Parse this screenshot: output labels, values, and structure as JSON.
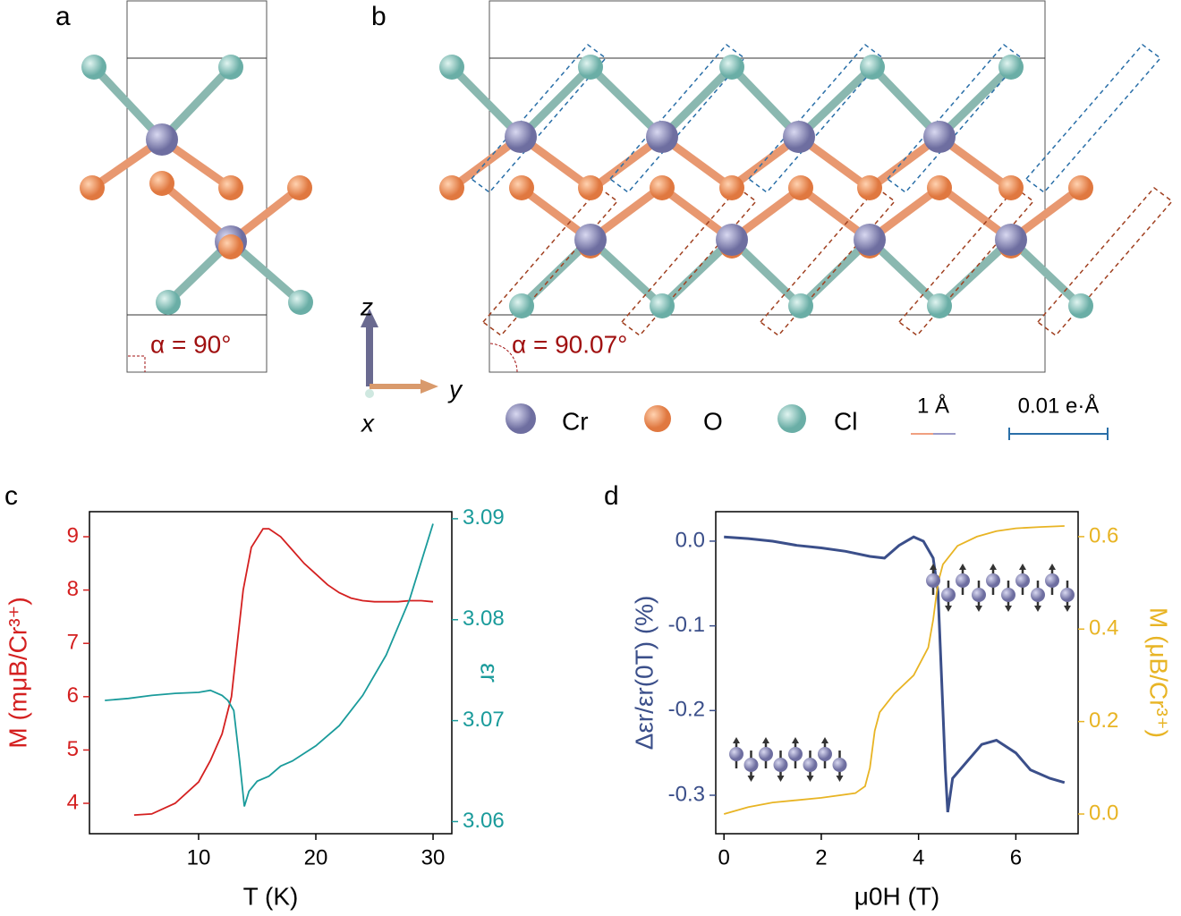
{
  "panel_labels": [
    "a",
    "b",
    "c",
    "d"
  ],
  "structure": {
    "alpha_a": "α = 90°",
    "alpha_b": "α = 90.07°",
    "axis_z": "z",
    "axis_y": "y",
    "axis_x": "x",
    "legend": [
      "Cr",
      "O",
      "Cl"
    ],
    "scale_displacement": "1 Å",
    "scale_polarization": "0.01 e·Å"
  },
  "chart_data": [
    {
      "type": "line",
      "xlabel": "T (K)",
      "ylabel": "M (mμB/Cr³⁺)",
      "y2label": "εr",
      "xlim": [
        0.69,
        31.6
      ],
      "xticks": [
        10,
        20,
        30
      ],
      "ylim": [
        3.43,
        9.47
      ],
      "yticks": [
        4,
        5,
        6,
        7,
        8,
        9
      ],
      "y2lim": [
        3.0588,
        3.0907
      ],
      "y2ticks": [
        3.06,
        3.07,
        3.08,
        3.09
      ],
      "series": [
        {
          "name": "M",
          "color": "#d42020",
          "x": [
            4.5,
            6,
            8,
            10,
            11,
            12,
            12.8,
            13.3,
            13.8,
            14.5,
            15.5,
            16,
            17,
            18,
            19,
            20,
            21,
            22,
            23,
            24,
            25,
            26,
            27,
            28,
            29,
            30
          ],
          "values": [
            3.78,
            3.8,
            4.0,
            4.4,
            4.8,
            5.3,
            6.0,
            7.0,
            8.0,
            8.8,
            9.15,
            9.15,
            9.0,
            8.75,
            8.5,
            8.3,
            8.1,
            7.95,
            7.85,
            7.8,
            7.78,
            7.78,
            7.78,
            7.8,
            7.8,
            7.78
          ]
        },
        {
          "name": "εr",
          "color": "#1a9b9b",
          "axis": "y2",
          "x": [
            2,
            4,
            6,
            8,
            10,
            11,
            12,
            12.5,
            13,
            13.5,
            13.9,
            14.3,
            15,
            16,
            17,
            18,
            20,
            22,
            24,
            26,
            28,
            30
          ],
          "values": [
            3.072,
            3.0722,
            3.0725,
            3.0727,
            3.0728,
            3.073,
            3.0725,
            3.072,
            3.071,
            3.066,
            3.0615,
            3.063,
            3.064,
            3.0645,
            3.0655,
            3.066,
            3.0675,
            3.0695,
            3.0725,
            3.0765,
            3.082,
            3.0895
          ]
        }
      ]
    },
    {
      "type": "line",
      "xlabel": "μ0H (T)",
      "ylabel": "Δεr/εr(0T) (%)",
      "y2label": "M (μB/Cr³⁺)",
      "xlim": [
        -0.169,
        7.28
      ],
      "xticks": [
        0,
        2,
        4,
        6
      ],
      "ylim": [
        -0.3454,
        0.0348
      ],
      "yticks": [
        {
          "value": 0,
          "label": "0.0"
        },
        -0.1,
        -0.2,
        -0.3
      ],
      "y2lim": [
        -0.0426,
        0.654
      ],
      "y2ticks": [
        {
          "value": 0,
          "label": "0.0"
        },
        0.2,
        0.4,
        0.6
      ],
      "series": [
        {
          "name": "Δεr/εr(0T)",
          "color": "#3b4f8a",
          "x": [
            0,
            0.5,
            1,
            1.5,
            2,
            2.5,
            3,
            3.3,
            3.6,
            3.9,
            4.1,
            4.3,
            4.4,
            4.5,
            4.55,
            4.6,
            4.7,
            5.0,
            5.3,
            5.6,
            6.0,
            6.3,
            6.7,
            7.0
          ],
          "values": [
            0.005,
            0.003,
            0.0,
            -0.005,
            -0.008,
            -0.012,
            -0.018,
            -0.02,
            -0.005,
            0.005,
            0.0,
            -0.02,
            -0.06,
            -0.2,
            -0.27,
            -0.32,
            -0.28,
            -0.26,
            -0.24,
            -0.235,
            -0.25,
            -0.27,
            -0.28,
            -0.285
          ]
        },
        {
          "name": "M",
          "color": "#e8b424",
          "axis": "y2",
          "x": [
            0,
            0.5,
            1,
            2,
            2.7,
            2.9,
            3.0,
            3.1,
            3.2,
            3.5,
            3.9,
            4.2,
            4.3,
            4.4,
            4.5,
            4.8,
            5.2,
            5.6,
            6,
            6.5,
            7
          ],
          "values": [
            0.0,
            0.015,
            0.025,
            0.035,
            0.045,
            0.06,
            0.1,
            0.18,
            0.22,
            0.26,
            0.3,
            0.36,
            0.42,
            0.5,
            0.54,
            0.58,
            0.6,
            0.612,
            0.618,
            0.621,
            0.623
          ]
        }
      ]
    }
  ]
}
